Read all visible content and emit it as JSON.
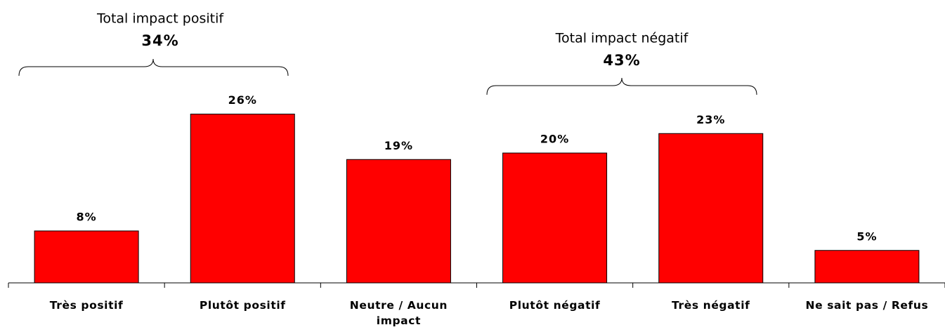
{
  "chart_data": {
    "type": "bar",
    "categories": [
      "Très positif",
      "Plutôt positif",
      "Neutre / Aucun impact",
      "Plutôt négatif",
      "Très négatif",
      "Ne sait pas / Refus"
    ],
    "values": [
      8,
      26,
      19,
      20,
      23,
      5
    ],
    "value_labels": [
      "8%",
      "26%",
      "19%",
      "20%",
      "23%",
      "5%"
    ],
    "color": "#ff0000",
    "annotations": [
      {
        "text": "Total impact positif",
        "value": 34,
        "label": "34%"
      },
      {
        "text": "Total impact négatif",
        "value": 43,
        "label": "43%"
      }
    ]
  }
}
